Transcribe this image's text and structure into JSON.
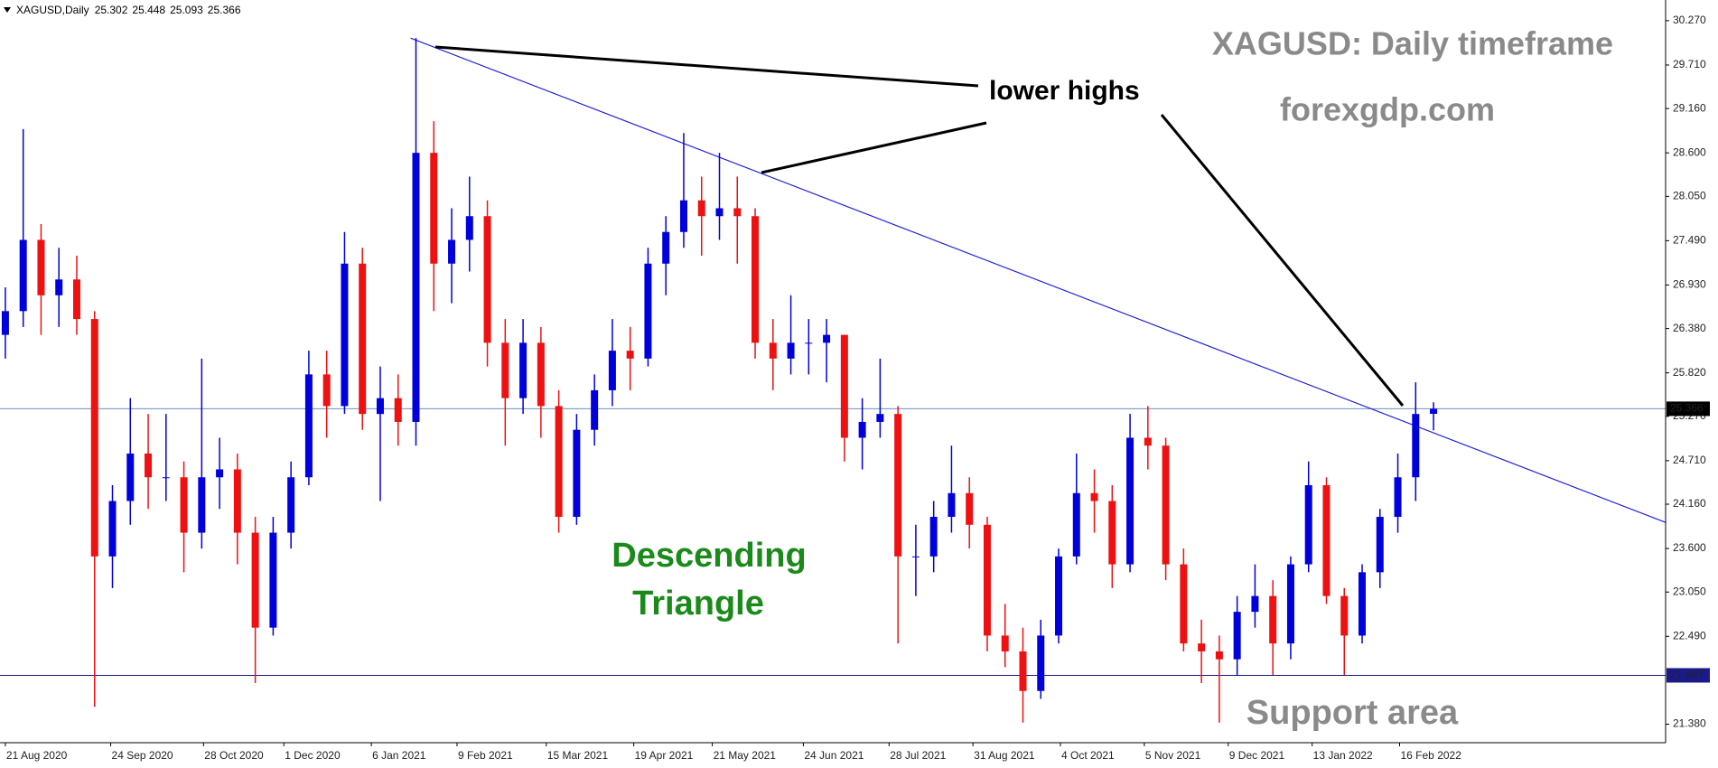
{
  "chart_data": {
    "type": "candlestick",
    "symbol": "XAGUSD,Daily",
    "title": "XAGUSD: Daily timeframe",
    "subtitle": "forexgdp.com",
    "annotation_highs": "lower highs",
    "pattern_label": [
      "Descending",
      "Triangle"
    ],
    "annotation_support": "Support area",
    "up_color": "#0000dd",
    "down_color": "#ee1111",
    "ohlc": [
      [
        26.3,
        26.9,
        26.0,
        26.6
      ],
      [
        26.6,
        28.9,
        26.4,
        27.5
      ],
      [
        27.5,
        27.7,
        26.3,
        26.8
      ],
      [
        26.8,
        27.4,
        26.4,
        27.0
      ],
      [
        27.0,
        27.3,
        26.3,
        26.5
      ],
      [
        26.5,
        26.6,
        21.6,
        23.5
      ],
      [
        23.5,
        24.4,
        23.1,
        24.2
      ],
      [
        24.2,
        25.5,
        23.9,
        24.8
      ],
      [
        24.8,
        25.3,
        24.1,
        24.5
      ],
      [
        24.5,
        25.3,
        24.2,
        24.5
      ],
      [
        24.5,
        24.7,
        23.3,
        23.8
      ],
      [
        23.8,
        26.0,
        23.6,
        24.5
      ],
      [
        24.5,
        25.0,
        24.1,
        24.6
      ],
      [
        24.6,
        24.8,
        23.4,
        23.8
      ],
      [
        23.8,
        24.0,
        21.9,
        22.6
      ],
      [
        22.6,
        24.0,
        22.5,
        23.8
      ],
      [
        23.8,
        24.7,
        23.6,
        24.5
      ],
      [
        24.5,
        26.1,
        24.4,
        25.8
      ],
      [
        25.8,
        26.1,
        25.0,
        25.4
      ],
      [
        25.4,
        27.6,
        25.3,
        27.2
      ],
      [
        27.2,
        27.4,
        25.1,
        25.3
      ],
      [
        25.3,
        25.9,
        24.2,
        25.5
      ],
      [
        25.5,
        25.8,
        24.9,
        25.2
      ],
      [
        25.2,
        30.05,
        24.9,
        28.6
      ],
      [
        28.6,
        29.0,
        26.6,
        27.2
      ],
      [
        27.2,
        27.9,
        26.7,
        27.5
      ],
      [
        27.5,
        28.3,
        27.1,
        27.8
      ],
      [
        27.8,
        28.0,
        25.9,
        26.2
      ],
      [
        26.2,
        26.5,
        24.9,
        25.5
      ],
      [
        25.5,
        26.5,
        25.3,
        26.2
      ],
      [
        26.2,
        26.4,
        25.0,
        25.4
      ],
      [
        25.4,
        25.6,
        23.8,
        24.0
      ],
      [
        24.0,
        25.3,
        23.9,
        25.1
      ],
      [
        25.1,
        25.8,
        24.9,
        25.6
      ],
      [
        25.6,
        26.5,
        25.4,
        26.1
      ],
      [
        26.1,
        26.4,
        25.6,
        26.0
      ],
      [
        26.0,
        27.4,
        25.9,
        27.2
      ],
      [
        27.2,
        27.8,
        26.8,
        27.6
      ],
      [
        27.6,
        28.85,
        27.4,
        28.0
      ],
      [
        28.0,
        28.3,
        27.3,
        27.8
      ],
      [
        27.8,
        28.6,
        27.5,
        27.9
      ],
      [
        27.9,
        28.3,
        27.2,
        27.8
      ],
      [
        27.8,
        27.9,
        26.0,
        26.2
      ],
      [
        26.2,
        26.5,
        25.6,
        26.0
      ],
      [
        26.0,
        26.8,
        25.8,
        26.2
      ],
      [
        26.2,
        26.5,
        25.8,
        26.2
      ],
      [
        26.2,
        26.5,
        25.7,
        26.3
      ],
      [
        26.3,
        26.3,
        24.7,
        25.0
      ],
      [
        25.0,
        25.5,
        24.6,
        25.2
      ],
      [
        25.2,
        26.0,
        25.0,
        25.3
      ],
      [
        25.3,
        25.4,
        22.4,
        23.5
      ],
      [
        23.5,
        23.9,
        23.0,
        23.5
      ],
      [
        23.5,
        24.2,
        23.3,
        24.0
      ],
      [
        24.0,
        24.9,
        23.8,
        24.3
      ],
      [
        24.3,
        24.5,
        23.6,
        23.9
      ],
      [
        23.9,
        24.0,
        22.3,
        22.5
      ],
      [
        22.5,
        22.9,
        22.1,
        22.3
      ],
      [
        22.3,
        22.6,
        21.4,
        21.8
      ],
      [
        21.8,
        22.7,
        21.7,
        22.5
      ],
      [
        22.5,
        23.6,
        22.4,
        23.5
      ],
      [
        23.5,
        24.8,
        23.4,
        24.3
      ],
      [
        24.3,
        24.6,
        23.8,
        24.2
      ],
      [
        24.2,
        24.4,
        23.1,
        23.4
      ],
      [
        23.4,
        25.3,
        23.3,
        25.0
      ],
      [
        25.0,
        25.4,
        24.6,
        24.9
      ],
      [
        24.9,
        25.0,
        23.2,
        23.4
      ],
      [
        23.4,
        23.6,
        22.3,
        22.4
      ],
      [
        22.4,
        22.7,
        21.9,
        22.3
      ],
      [
        22.3,
        22.5,
        21.4,
        22.2
      ],
      [
        22.2,
        23.0,
        22.0,
        22.8
      ],
      [
        22.8,
        23.4,
        22.6,
        23.0
      ],
      [
        23.0,
        23.2,
        22.0,
        22.4
      ],
      [
        22.4,
        23.5,
        22.2,
        23.4
      ],
      [
        23.4,
        24.7,
        23.3,
        24.4
      ],
      [
        24.4,
        24.5,
        22.9,
        23.0
      ],
      [
        23.0,
        23.1,
        22.0,
        22.5
      ],
      [
        22.5,
        23.4,
        22.4,
        23.3
      ],
      [
        23.3,
        24.1,
        23.1,
        24.0
      ],
      [
        24.0,
        24.8,
        23.8,
        24.5
      ],
      [
        24.5,
        25.7,
        24.2,
        25.3
      ],
      [
        25.302,
        25.448,
        25.093,
        25.366
      ]
    ],
    "xlim": [
      -0.3,
      93
    ],
    "xticks": [
      {
        "value": 0,
        "label": "21 Aug 2020"
      },
      {
        "value": 5.9,
        "label": "24 Sep 2020"
      },
      {
        "value": 11.1,
        "label": "28 Oct 2020"
      },
      {
        "value": 15.6,
        "label": "1 Dec 2020"
      },
      {
        "value": 20.5,
        "label": "6 Jan 2021"
      },
      {
        "value": 25.3,
        "label": "9 Feb 2021"
      },
      {
        "value": 30.3,
        "label": "15 Mar 2021"
      },
      {
        "value": 35.2,
        "label": "19 Apr 2021"
      },
      {
        "value": 39.6,
        "label": "21 May 2021"
      },
      {
        "value": 44.7,
        "label": "24 Jun 2021"
      },
      {
        "value": 49.5,
        "label": "28 Jul 2021"
      },
      {
        "value": 54.2,
        "label": "31 Aug 2021"
      },
      {
        "value": 59.1,
        "label": "4 Oct 2021"
      },
      {
        "value": 63.8,
        "label": "5 Nov 2021"
      },
      {
        "value": 68.5,
        "label": "9 Dec 2021"
      },
      {
        "value": 73.2,
        "label": "13 Jan 2022"
      },
      {
        "value": 78.1,
        "label": "16 Feb 2022"
      }
    ],
    "ylim": [
      21.146,
      30.463
    ],
    "yticks": [
      {
        "value": 30.27,
        "label": "30.270"
      },
      {
        "value": 29.71,
        "label": "29.710"
      },
      {
        "value": 29.16,
        "label": "29.160"
      },
      {
        "value": 28.6,
        "label": "28.600"
      },
      {
        "value": 28.05,
        "label": "28.050"
      },
      {
        "value": 27.49,
        "label": "27.490"
      },
      {
        "value": 26.93,
        "label": "26.930"
      },
      {
        "value": 26.38,
        "label": "26.380"
      },
      {
        "value": 25.82,
        "label": "25.820"
      },
      {
        "value": 25.27,
        "label": "25.270"
      },
      {
        "value": 24.71,
        "label": "24.710"
      },
      {
        "value": 24.16,
        "label": "24.160"
      },
      {
        "value": 23.6,
        "label": "23.600"
      },
      {
        "value": 23.05,
        "label": "23.050"
      },
      {
        "value": 22.49,
        "label": "22.490"
      },
      {
        "value": 21.38,
        "label": "21.380"
      }
    ],
    "current_price": 25.366,
    "support_level": 21.997,
    "trendline": {
      "x": [
        22.7,
        93
      ],
      "y": [
        30.05,
        23.93
      ]
    }
  }
}
